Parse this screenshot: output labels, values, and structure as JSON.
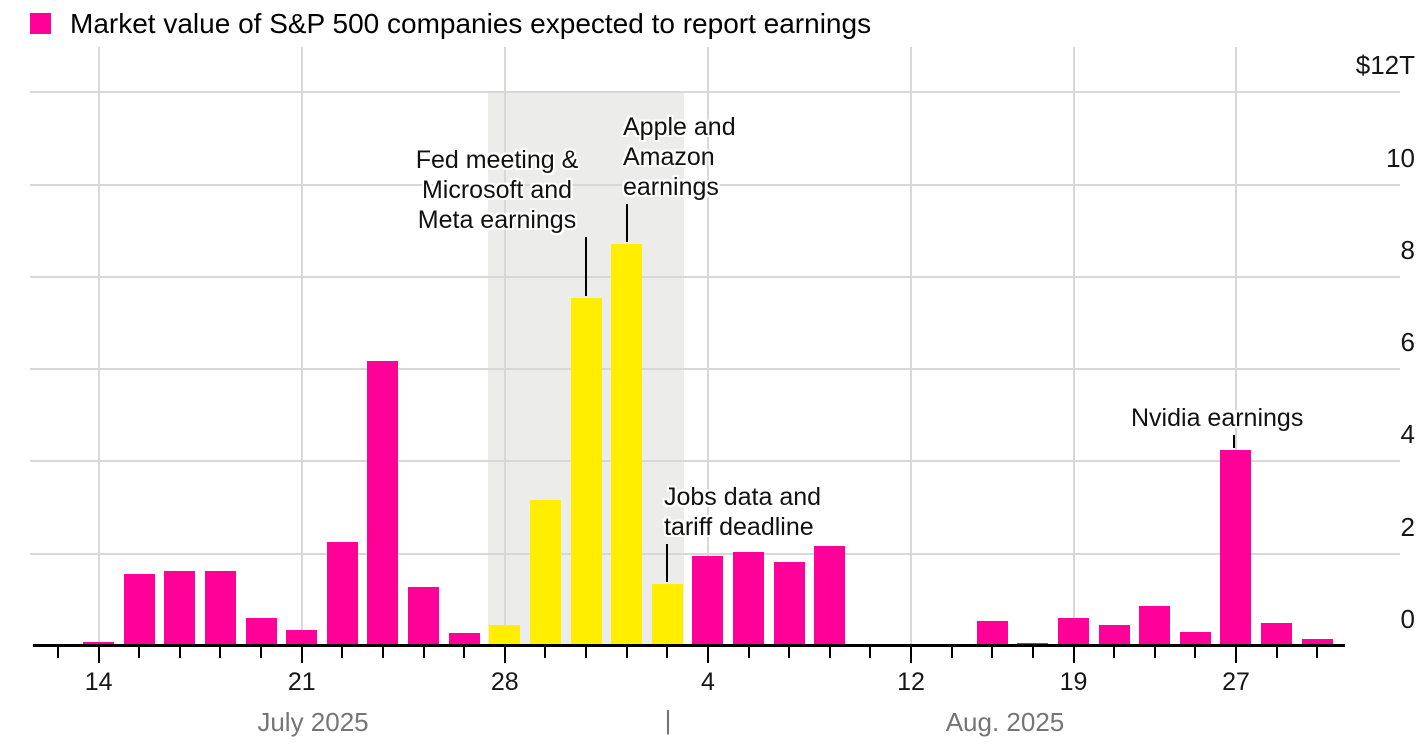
{
  "chart_data": {
    "type": "bar",
    "title": "Market value of S&P 500 companies expected to report earnings",
    "unit": "USD trillions",
    "ylim": [
      0,
      12.5
    ],
    "grid": true,
    "legend_position": "top-left",
    "series_colors": {
      "pink": "#ff0099",
      "yellow": "#ffee00"
    },
    "y_axis": {
      "tick_labels": [
        "$12T",
        "10",
        "8",
        "6",
        "4",
        "2",
        "0"
      ],
      "tick_values": [
        12,
        10,
        8,
        6,
        4,
        2,
        0
      ],
      "side": "right"
    },
    "x_axis": {
      "tick_labels": [
        {
          "slot": 1,
          "label": "14"
        },
        {
          "slot": 6,
          "label": "21"
        },
        {
          "slot": 11,
          "label": "28"
        },
        {
          "slot": 16,
          "label": "4"
        },
        {
          "slot": 21,
          "label": "12"
        },
        {
          "slot": 25,
          "label": "19"
        },
        {
          "slot": 29,
          "label": "27"
        }
      ],
      "month_labels": [
        "July 2025",
        "Aug. 2025"
      ],
      "month_separator": "|"
    },
    "bars": [
      {
        "slot": 0,
        "value": 0.04,
        "color": "pink"
      },
      {
        "slot": 1,
        "value": 0.08,
        "color": "pink"
      },
      {
        "slot": 2,
        "value": 1.55,
        "color": "pink"
      },
      {
        "slot": 3,
        "value": 1.63,
        "color": "pink"
      },
      {
        "slot": 4,
        "value": 1.62,
        "color": "pink"
      },
      {
        "slot": 5,
        "value": 0.61,
        "color": "pink"
      },
      {
        "slot": 6,
        "value": 0.34,
        "color": "pink"
      },
      {
        "slot": 7,
        "value": 2.26,
        "color": "pink"
      },
      {
        "slot": 8,
        "value": 6.17,
        "color": "pink"
      },
      {
        "slot": 9,
        "value": 1.27,
        "color": "pink"
      },
      {
        "slot": 10,
        "value": 0.28,
        "color": "pink"
      },
      {
        "slot": 11,
        "value": 0.45,
        "color": "yellow"
      },
      {
        "slot": 12,
        "value": 3.16,
        "color": "yellow"
      },
      {
        "slot": 13,
        "value": 7.55,
        "color": "yellow"
      },
      {
        "slot": 14,
        "value": 8.7,
        "color": "yellow"
      },
      {
        "slot": 15,
        "value": 1.35,
        "color": "yellow"
      },
      {
        "slot": 16,
        "value": 1.94,
        "color": "pink"
      },
      {
        "slot": 17,
        "value": 2.04,
        "color": "pink"
      },
      {
        "slot": 18,
        "value": 1.83,
        "color": "pink"
      },
      {
        "slot": 19,
        "value": 2.17,
        "color": "pink"
      },
      {
        "slot": 20,
        "value": 0,
        "color": "pink"
      },
      {
        "slot": 21,
        "value": 0.03,
        "color": "pink"
      },
      {
        "slot": 22,
        "value": 0,
        "color": "pink"
      },
      {
        "slot": 23,
        "value": 0.55,
        "color": "pink"
      },
      {
        "slot": 24,
        "value": 0.06,
        "color": "pink"
      },
      {
        "slot": 25,
        "value": 0.6,
        "color": "pink"
      },
      {
        "slot": 26,
        "value": 0.45,
        "color": "pink"
      },
      {
        "slot": 27,
        "value": 0.86,
        "color": "pink"
      },
      {
        "slot": 28,
        "value": 0.3,
        "color": "pink"
      },
      {
        "slot": 29,
        "value": 4.25,
        "color": "pink"
      },
      {
        "slot": 30,
        "value": 0.5,
        "color": "pink"
      },
      {
        "slot": 31,
        "value": 0.15,
        "color": "pink"
      }
    ],
    "highlight_band": {
      "from_slot": 11,
      "to_slot": 15,
      "color": "#ececeb"
    },
    "annotations": [
      {
        "id": "fed",
        "lines": [
          "Fed meeting &",
          "Microsoft and",
          "Meta earnings"
        ],
        "align": "center",
        "points_to_slot": 13
      },
      {
        "id": "apple",
        "lines": [
          "Apple and",
          "Amazon",
          "earnings"
        ],
        "align": "left",
        "points_to_slot": 14
      },
      {
        "id": "jobs",
        "lines": [
          "Jobs data and",
          "tariff deadline"
        ],
        "align": "left",
        "points_to_slot": 15
      },
      {
        "id": "nvidia",
        "lines": [
          "Nvidia earnings"
        ],
        "align": "left",
        "points_to_slot": 29
      }
    ]
  }
}
